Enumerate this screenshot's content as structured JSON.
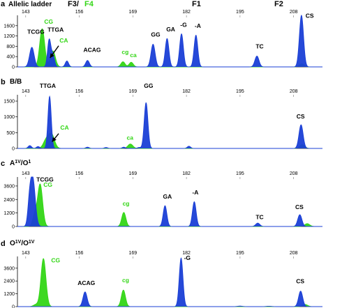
{
  "figure": {
    "header": {
      "panel_letter": "a",
      "title": "Allelic ladder",
      "f3": "F3/",
      "f4": "F4",
      "f1": "F1",
      "f2": "F2"
    }
  },
  "colors": {
    "blue": "#1a3fd6",
    "green": "#33d616",
    "axis": "#000000",
    "tick": "#555555"
  },
  "chart_data": [
    {
      "type": "area",
      "panel": "a",
      "title": "Allelic ladder",
      "x_ticks": [
        143,
        156,
        169,
        182,
        195,
        208
      ],
      "y_ticks": [
        0,
        400,
        800,
        1200,
        1600
      ],
      "tick_labels": [
        "0",
        "400",
        "800",
        "1200",
        "1600"
      ],
      "xlim": [
        141,
        215
      ],
      "ylim": [
        0,
        2000
      ],
      "series": [
        {
          "color": "blue",
          "peaks": [
            [
              144.5,
              760,
              0.55
            ],
            [
              148.7,
              1050,
              0.4
            ],
            [
              149.6,
              450,
              0.4
            ],
            [
              153.0,
              230,
              0.4
            ],
            [
              158.0,
              250,
              0.45
            ],
            [
              173.9,
              880,
              0.5
            ],
            [
              177.3,
              1100,
              0.45
            ],
            [
              180.8,
              1280,
              0.45
            ],
            [
              184.3,
              1230,
              0.45
            ],
            [
              199.1,
              420,
              0.5
            ],
            [
              209.9,
              2000,
              0.5
            ]
          ]
        },
        {
          "color": "green",
          "peaks": [
            [
              147.0,
              1480,
              0.6
            ],
            [
              149.6,
              620,
              0.6
            ],
            [
              166.6,
              200,
              0.5
            ],
            [
              168.6,
              180,
              0.5
            ],
            [
              210.0,
              120,
              0.6
            ]
          ]
        }
      ],
      "annotations": [
        {
          "text": "TCGG",
          "x": 143.4,
          "y": 1280,
          "color": "black"
        },
        {
          "text": "CG",
          "x": 147.5,
          "y": 1680,
          "color": "green"
        },
        {
          "text": "TTGA",
          "x": 148.3,
          "y": 1360,
          "color": "black"
        },
        {
          "text": "CA",
          "x": 151.2,
          "y": 950,
          "color": "green"
        },
        {
          "text": "ACAG",
          "x": 157.0,
          "y": 580,
          "color": "black"
        },
        {
          "text": "cg",
          "x": 166.3,
          "y": 500,
          "color": "green"
        },
        {
          "text": "ca",
          "x": 168.3,
          "y": 380,
          "color": "green"
        },
        {
          "text": "GG",
          "x": 173.4,
          "y": 1170,
          "color": "black"
        },
        {
          "text": "GA",
          "x": 177.1,
          "y": 1380,
          "color": "black"
        },
        {
          "text": "-G",
          "x": 180.5,
          "y": 1560,
          "color": "black"
        },
        {
          "text": "-A",
          "x": 184.0,
          "y": 1510,
          "color": "black"
        },
        {
          "text": "TC",
          "x": 198.8,
          "y": 710,
          "color": "black"
        },
        {
          "text": "CS",
          "x": 210.9,
          "y": 1900,
          "color": "black"
        }
      ],
      "arrows": [
        {
          "from": [
            151.0,
            820
          ],
          "to": [
            148.9,
            350
          ]
        }
      ]
    },
    {
      "type": "area",
      "panel": "b",
      "title": "B/B",
      "x_ticks": [
        143,
        156,
        169,
        182,
        195,
        208
      ],
      "y_ticks": [
        0,
        500,
        1000,
        1500
      ],
      "tick_labels": [
        "0",
        "500",
        "1000",
        "1500"
      ],
      "xlim": [
        141,
        215
      ],
      "ylim": [
        0,
        1700
      ],
      "series": [
        {
          "color": "blue",
          "peaks": [
            [
              148.8,
              1650,
              0.4
            ],
            [
              144.0,
              90,
              0.4
            ],
            [
              146.0,
              60,
              0.4
            ],
            [
              158.0,
              40,
              0.4
            ],
            [
              162.5,
              30,
              0.4
            ],
            [
              166.8,
              40,
              0.4
            ],
            [
              170.5,
              30,
              0.4
            ],
            [
              172.2,
              1450,
              0.45
            ],
            [
              182.6,
              70,
              0.4
            ],
            [
              209.8,
              750,
              0.5
            ]
          ]
        },
        {
          "color": "green",
          "peaks": [
            [
              148.0,
              270,
              0.7
            ],
            [
              149.3,
              430,
              0.7
            ],
            [
              168.4,
              140,
              0.6
            ],
            [
              210.1,
              120,
              0.6
            ]
          ]
        }
      ],
      "annotations": [
        {
          "text": "TTGA",
          "x": 146.4,
          "y": 1920,
          "color": "black"
        },
        {
          "text": "GG",
          "x": 171.7,
          "y": 1920,
          "color": "black"
        },
        {
          "text": "CA",
          "x": 151.4,
          "y": 600,
          "color": "green"
        },
        {
          "text": "ca",
          "x": 167.5,
          "y": 280,
          "color": "green"
        },
        {
          "text": "CS",
          "x": 208.7,
          "y": 950,
          "color": "black"
        }
      ],
      "arrows": [
        {
          "from": [
            151.0,
            470
          ],
          "to": [
            149.4,
            210
          ]
        }
      ]
    },
    {
      "type": "area",
      "panel": "c",
      "title": "A1V/O1",
      "x_ticks": [
        143,
        156,
        169,
        182,
        195,
        208
      ],
      "y_ticks": [
        0,
        1200,
        2400,
        3600
      ],
      "tick_labels": [
        "0",
        "1200",
        "2400",
        "3600"
      ],
      "xlim": [
        141,
        215
      ],
      "ylim": [
        0,
        4400
      ],
      "series": [
        {
          "color": "blue",
          "peaks": [
            [
              144.7,
              4300,
              0.6
            ],
            [
              143.9,
              1500,
              0.4
            ],
            [
              176.8,
              1850,
              0.45
            ],
            [
              183.9,
              2200,
              0.45
            ],
            [
              199.3,
              300,
              0.5
            ],
            [
              209.5,
              1050,
              0.5
            ]
          ]
        },
        {
          "color": "green",
          "peaks": [
            [
              146.5,
              3750,
              0.6
            ],
            [
              145.2,
              1000,
              0.5
            ],
            [
              166.8,
              1250,
              0.5
            ],
            [
              211.3,
              250,
              0.6
            ]
          ]
        }
      ],
      "annotations": [
        {
          "text": "TCGG",
          "x": 145.6,
          "y": 4000,
          "color": "black"
        },
        {
          "text": "CG",
          "x": 147.3,
          "y": 3540,
          "color": "green"
        },
        {
          "text": "cg",
          "x": 166.5,
          "y": 1850,
          "color": "green"
        },
        {
          "text": "GA",
          "x": 176.3,
          "y": 2480,
          "color": "black"
        },
        {
          "text": "-A",
          "x": 183.4,
          "y": 2850,
          "color": "black"
        },
        {
          "text": "TC",
          "x": 198.8,
          "y": 650,
          "color": "black"
        },
        {
          "text": "CS",
          "x": 208.4,
          "y": 1550,
          "color": "black"
        }
      ]
    },
    {
      "type": "area",
      "panel": "d",
      "title": "O1V/O1V",
      "x_ticks": [
        143,
        156,
        169,
        182,
        195,
        208
      ],
      "y_ticks": [
        0,
        1200,
        2400,
        3600
      ],
      "tick_labels": [
        "0",
        "1200",
        "2400",
        "3600"
      ],
      "xlim": [
        141,
        215
      ],
      "ylim": [
        0,
        4700
      ],
      "series": [
        {
          "color": "blue",
          "peaks": [
            [
              157.4,
              1380,
              0.5
            ],
            [
              180.7,
              4550,
              0.45
            ],
            [
              209.7,
              1450,
              0.5
            ],
            [
              195.0,
              50,
              0.6
            ],
            [
              202.0,
              40,
              0.6
            ]
          ]
        },
        {
          "color": "green",
          "peaks": [
            [
              147.3,
              4500,
              0.6
            ],
            [
              145.5,
              200,
              0.6
            ],
            [
              166.7,
              1550,
              0.5
            ],
            [
              210.8,
              200,
              0.6
            ]
          ]
        }
      ],
      "annotations": [
        {
          "text": "CG",
          "x": 149.2,
          "y": 4150,
          "color": "green"
        },
        {
          "text": "ACAG",
          "x": 155.6,
          "y": 2040,
          "color": "black"
        },
        {
          "text": "cg",
          "x": 166.4,
          "y": 2280,
          "color": "green"
        },
        {
          "text": "-G",
          "x": 181.4,
          "y": 4380,
          "color": "black"
        },
        {
          "text": "CS",
          "x": 208.6,
          "y": 2180,
          "color": "black"
        }
      ]
    }
  ]
}
